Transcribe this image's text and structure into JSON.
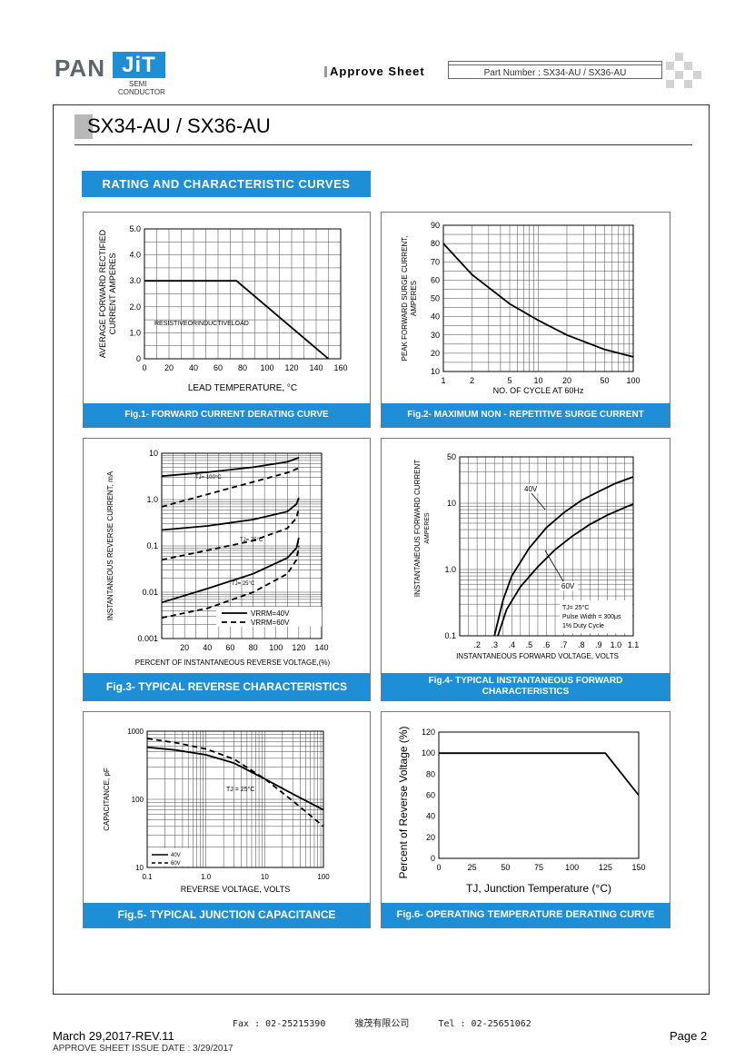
{
  "header": {
    "logo_pan": "PAN",
    "logo_jit": "JiT",
    "logo_semi": "SEMI",
    "logo_conductor": "CONDUCTOR",
    "approve_sheet": "Approve Sheet",
    "part_number": "Part Number : SX34-AU / SX36-AU"
  },
  "title": "SX34-AU / SX36-AU",
  "section_title": "RATING AND CHARACTERISTIC CURVES",
  "figures": {
    "fig1_caption": "Fig.1- FORWARD CURRENT DERATING CURVE",
    "fig2_caption": "Fig.2- MAXIMUM NON - REPETITIVE SURGE CURRENT",
    "fig3_caption": "Fig.3- TYPICAL REVERSE CHARACTERISTICS",
    "fig4_caption_1": "Fig.4- TYPICAL INSTANTANEOUS FORWARD",
    "fig4_caption_2": "CHARACTERISTICS",
    "fig5_caption": "Fig.5- TYPICAL JUNCTION CAPACITANCE",
    "fig6_caption": "Fig.6- OPERATING TEMPERATURE DERATING CURVE"
  },
  "chart_data": [
    {
      "id": "fig1",
      "type": "line",
      "xlabel": "LEAD TEMPERATURE, °C",
      "ylabel_1": "AVERAGE FORWARD RECTIFIED",
      "ylabel_2": "CURRENT AMPERES",
      "xlim": [
        0,
        160
      ],
      "ylim": [
        0,
        5
      ],
      "xticks": [
        0,
        20,
        40,
        60,
        80,
        100,
        120,
        140,
        160
      ],
      "xtick_labels": [
        "0",
        "20",
        "40",
        "60",
        "80",
        "100",
        "120",
        "140",
        "160"
      ],
      "yticks": [
        0,
        1,
        2,
        3,
        4,
        5
      ],
      "ytick_labels": [
        "0",
        "1.0",
        "2.0",
        "3.0",
        "4.0",
        "5.0"
      ],
      "annotation": "RESISTIVEORINDUCTIVELOAD",
      "grid": true,
      "series": [
        {
          "x": [
            0,
            75,
            150
          ],
          "y": [
            3,
            3,
            0
          ]
        }
      ]
    },
    {
      "id": "fig2",
      "type": "line",
      "xlabel": "NO. OF CYCLE AT 60Hz",
      "ylabel_1": "PEAK FORWARD SURGE CURRENT,",
      "ylabel_2": "AMPERES",
      "xscale": "log",
      "xlim": [
        1,
        100
      ],
      "ylim": [
        10,
        90
      ],
      "xticks": [
        1,
        2,
        5,
        10,
        20,
        50,
        100
      ],
      "xtick_labels": [
        "1",
        "2",
        "5",
        "10",
        "20",
        "50",
        "100"
      ],
      "yticks": [
        10,
        20,
        30,
        40,
        50,
        60,
        70,
        80,
        90
      ],
      "ytick_labels": [
        "10",
        "20",
        "30",
        "40",
        "50",
        "60",
        "70",
        "80",
        "90"
      ],
      "grid": true,
      "series": [
        {
          "x": [
            1,
            2,
            5,
            10,
            20,
            50,
            100
          ],
          "y": [
            80,
            63,
            47,
            38,
            30,
            22,
            18
          ]
        }
      ]
    },
    {
      "id": "fig3",
      "type": "line",
      "xlabel": "PERCENT OF INSTANTANEOUS REVERSE VOLTAGE,(%)",
      "ylabel_1": "INSTANTANEOUS REVERSE CURRENT, mA",
      "yscale": "log",
      "xlim": [
        0,
        140
      ],
      "ylim": [
        0.001,
        10
      ],
      "xticks": [
        20,
        40,
        60,
        80,
        100,
        120,
        140
      ],
      "xtick_labels": [
        "20",
        "40",
        "60",
        "80",
        "100",
        "120",
        "140"
      ],
      "yticks": [
        0.001,
        0.01,
        0.1,
        1,
        10
      ],
      "ytick_labels": [
        "0.001",
        "0.01",
        "0.1",
        "1.0",
        "10"
      ],
      "annotations": [
        "TJ= 100°C",
        "TJ= 75°C",
        "TJ= 25°C"
      ],
      "legend": [
        "VRRM=40V",
        "VRRM=60V"
      ],
      "grid": true,
      "series": [
        {
          "style": "solid",
          "x": [
            0,
            40,
            80,
            110,
            120
          ],
          "y": [
            3.2,
            3.9,
            5,
            6.5,
            8
          ]
        },
        {
          "style": "dashed",
          "x": [
            0,
            40,
            80,
            110,
            120
          ],
          "y": [
            0.7,
            1.3,
            2.4,
            3.8,
            4.8
          ]
        },
        {
          "style": "solid",
          "x": [
            0,
            40,
            80,
            110,
            118,
            120
          ],
          "y": [
            0.22,
            0.27,
            0.37,
            0.55,
            0.8,
            1.1
          ]
        },
        {
          "style": "dashed",
          "x": [
            0,
            40,
            80,
            110,
            118,
            120
          ],
          "y": [
            0.05,
            0.08,
            0.13,
            0.24,
            0.4,
            0.65
          ]
        },
        {
          "style": "solid",
          "x": [
            0,
            40,
            80,
            110,
            118,
            120
          ],
          "y": [
            0.006,
            0.012,
            0.025,
            0.055,
            0.09,
            0.15
          ]
        },
        {
          "style": "dashed",
          "x": [
            0,
            40,
            80,
            110,
            118,
            120
          ],
          "y": [
            0.0028,
            0.0045,
            0.01,
            0.025,
            0.05,
            0.1
          ]
        }
      ]
    },
    {
      "id": "fig4",
      "type": "line",
      "xlabel": "INSTANTANEOUS FORWARD VOLTAGE, VOLTS",
      "ylabel_1": "INSTANTANEOUS FORWARD CURRENT",
      "ylabel_2": "AMPERES",
      "yscale": "log",
      "xlim": [
        0.1,
        1.1
      ],
      "ylim": [
        0.1,
        50
      ],
      "xticks": [
        0.2,
        0.3,
        0.4,
        0.5,
        0.6,
        0.7,
        0.8,
        0.9,
        1.0,
        1.1
      ],
      "xtick_labels": [
        ".2",
        ".3",
        ".4",
        ".5",
        ".6",
        ".7",
        ".8",
        ".9",
        "1.0",
        "1.1"
      ],
      "yticks": [
        0.1,
        1,
        10,
        50
      ],
      "ytick_labels": [
        "0.1",
        "1.0",
        "10",
        "50"
      ],
      "annotations": [
        "40V",
        "60V"
      ],
      "conditions": [
        "TJ= 25°C",
        "Pulse Width = 300μs",
        "1% Duty Cycle"
      ],
      "grid": true,
      "series": [
        {
          "name": "40V",
          "x": [
            0.3,
            0.35,
            0.4,
            0.5,
            0.6,
            0.7,
            0.8,
            0.9,
            1.0,
            1.1
          ],
          "y": [
            0.1,
            0.35,
            0.8,
            2.1,
            4.3,
            7.2,
            11,
            15,
            20,
            25
          ]
        },
        {
          "name": "60V",
          "x": [
            0.32,
            0.37,
            0.45,
            0.55,
            0.65,
            0.75,
            0.85,
            0.95,
            1.05,
            1.1
          ],
          "y": [
            0.1,
            0.25,
            0.55,
            1.1,
            2,
            3.2,
            4.8,
            6.6,
            8.6,
            9.7
          ]
        }
      ]
    },
    {
      "id": "fig5",
      "type": "line",
      "xlabel": "REVERSE VOLTAGE, VOLTS",
      "ylabel_1": "CAPACITANCE, pF",
      "xscale": "log",
      "yscale": "log",
      "xlim": [
        0.1,
        100
      ],
      "ylim": [
        10,
        1000
      ],
      "xticks": [
        0.1,
        1,
        10,
        100
      ],
      "xtick_labels": [
        "0.1",
        "1.0",
        "10",
        "100"
      ],
      "yticks": [
        10,
        100,
        1000
      ],
      "ytick_labels": [
        "10",
        "100",
        "1000"
      ],
      "annotation": "TJ = 25°C",
      "legend": [
        "40V",
        "60V"
      ],
      "grid": true,
      "series": [
        {
          "name": "40V",
          "style": "solid",
          "x": [
            0.1,
            0.3,
            1,
            3,
            10,
            30,
            100
          ],
          "y": [
            580,
            530,
            450,
            340,
            200,
            120,
            70
          ]
        },
        {
          "name": "60V",
          "style": "dashed",
          "x": [
            0.1,
            0.3,
            1,
            3,
            10,
            30,
            100
          ],
          "y": [
            780,
            680,
            550,
            390,
            200,
            95,
            40
          ]
        }
      ]
    },
    {
      "id": "fig6",
      "type": "line",
      "xlabel": "TJ, Junction Temperature  (°C)",
      "ylabel_1": "Percent of Reverse Voltage (%)",
      "xlim": [
        0,
        150
      ],
      "ylim": [
        0,
        120
      ],
      "xticks": [
        0,
        25,
        50,
        75,
        100,
        125,
        150
      ],
      "xtick_labels": [
        "0",
        "25",
        "50",
        "75",
        "100",
        "125",
        "150"
      ],
      "yticks": [
        0,
        20,
        40,
        60,
        80,
        100,
        120
      ],
      "ytick_labels": [
        "0",
        "20",
        "40",
        "60",
        "80",
        "100",
        "120"
      ],
      "grid": false,
      "series": [
        {
          "x": [
            0,
            125,
            150
          ],
          "y": [
            100,
            100,
            60
          ]
        }
      ]
    }
  ],
  "footer": {
    "fax": "Fax : 02-25215390",
    "company": "強茂有限公司",
    "tel": "Tel : 02-25651062",
    "date": "March 29,2017-REV.11",
    "page": "Page 2",
    "issue": "APPROVE SHEET ISSUE DATE : 3/29/2017"
  }
}
